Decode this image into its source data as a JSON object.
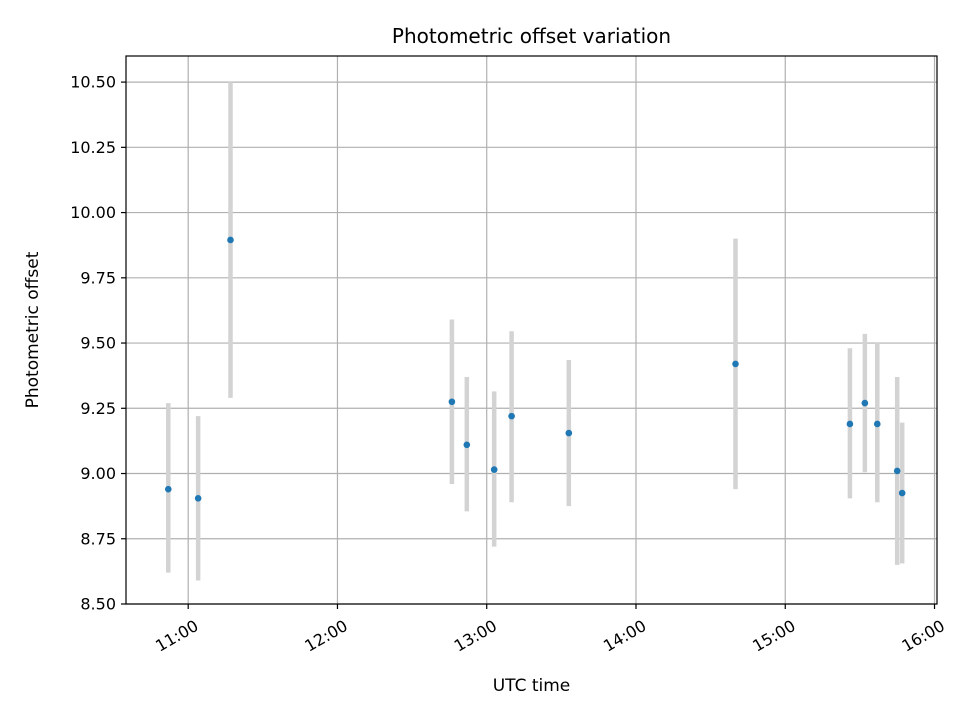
{
  "chart_data": {
    "type": "scatter",
    "title": "Photometric offset variation",
    "xlabel": "UTC time",
    "ylabel": "Photometric offset",
    "x_unit": "UTC time (HH:MM)",
    "xlim": [
      "10:35",
      "16:01"
    ],
    "ylim": [
      8.5,
      10.6
    ],
    "x_ticks": [
      "11:00",
      "12:00",
      "13:00",
      "14:00",
      "15:00",
      "16:00"
    ],
    "y_ticks": [
      "8.50",
      "8.75",
      "9.00",
      "9.25",
      "9.50",
      "9.75",
      "10.00",
      "10.25",
      "10.50"
    ],
    "grid": true,
    "point_color": "#1f77b4",
    "errorbar_color": "#d3d3d3",
    "points": [
      {
        "x": "10:52",
        "y": 8.94,
        "ylow": 8.62,
        "yhigh": 9.27
      },
      {
        "x": "11:04",
        "y": 8.905,
        "ylow": 8.59,
        "yhigh": 9.22
      },
      {
        "x": "11:17",
        "y": 9.895,
        "ylow": 9.29,
        "yhigh": 10.5
      },
      {
        "x": "12:46",
        "y": 9.275,
        "ylow": 8.96,
        "yhigh": 9.59
      },
      {
        "x": "12:52",
        "y": 9.11,
        "ylow": 8.855,
        "yhigh": 9.37
      },
      {
        "x": "13:03",
        "y": 9.015,
        "ylow": 8.72,
        "yhigh": 9.315
      },
      {
        "x": "13:10",
        "y": 9.22,
        "ylow": 8.89,
        "yhigh": 9.545
      },
      {
        "x": "13:33",
        "y": 9.155,
        "ylow": 8.875,
        "yhigh": 9.435
      },
      {
        "x": "14:40",
        "y": 9.42,
        "ylow": 8.94,
        "yhigh": 9.9
      },
      {
        "x": "15:26",
        "y": 9.19,
        "ylow": 8.905,
        "yhigh": 9.48
      },
      {
        "x": "15:32",
        "y": 9.27,
        "ylow": 9.005,
        "yhigh": 9.535
      },
      {
        "x": "15:37",
        "y": 9.19,
        "ylow": 8.89,
        "yhigh": 9.5
      },
      {
        "x": "15:45",
        "y": 9.01,
        "ylow": 8.65,
        "yhigh": 9.37
      },
      {
        "x": "15:47",
        "y": 8.925,
        "ylow": 8.655,
        "yhigh": 9.195
      }
    ]
  }
}
